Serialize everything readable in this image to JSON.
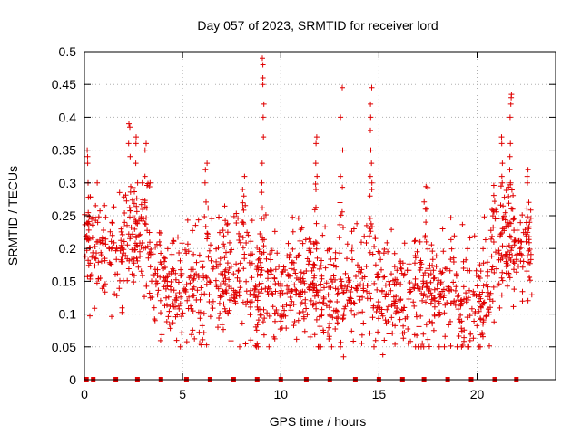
{
  "chart_data": {
    "type": "scatter",
    "title": "Day 057 of 2023, SRMTID for receiver lord",
    "xlabel": "GPS time / hours",
    "ylabel": "SRMTID / TECUs",
    "xlim": [
      0,
      24
    ],
    "ylim": [
      0,
      0.5
    ],
    "xticks": [
      0,
      5,
      10,
      15,
      20
    ],
    "yticks": [
      0,
      0.05,
      0.1,
      0.15,
      0.2,
      0.25,
      0.3,
      0.35,
      0.4,
      0.45,
      0.5
    ],
    "ytick_labels": [
      "0",
      "0.05",
      "0.1",
      "0.15",
      "0.2",
      "0.25",
      "0.3",
      "0.35",
      "0.4",
      "0.45",
      "0.5"
    ],
    "grid": true,
    "marker": "+",
    "series_color": "#e00000",
    "zero_markers_x": [
      0.1,
      0.45,
      1.6,
      2.7,
      3.9,
      5.2,
      6.4,
      7.6,
      8.8,
      10.0,
      11.3,
      12.5,
      13.8,
      15.0,
      16.2,
      17.3,
      18.5,
      19.7,
      20.9,
      22.0
    ],
    "spikes": [
      {
        "x": 0.2,
        "ys": [
          0.35,
          0.34,
          0.33,
          0.3
        ]
      },
      {
        "x": 2.3,
        "ys": [
          0.39,
          0.385,
          0.36,
          0.34
        ]
      },
      {
        "x": 2.6,
        "ys": [
          0.37,
          0.36,
          0.33
        ]
      },
      {
        "x": 3.1,
        "ys": [
          0.36,
          0.35,
          0.31
        ]
      },
      {
        "x": 6.2,
        "ys": [
          0.33,
          0.32,
          0.3
        ]
      },
      {
        "x": 8.1,
        "ys": [
          0.31,
          0.29,
          0.28
        ]
      },
      {
        "x": 9.1,
        "ys": [
          0.49,
          0.48,
          0.46,
          0.45,
          0.42,
          0.4,
          0.37,
          0.33,
          0.3
        ]
      },
      {
        "x": 11.8,
        "ys": [
          0.37,
          0.36,
          0.33,
          0.31,
          0.29
        ]
      },
      {
        "x": 13.1,
        "ys": [
          0.445,
          0.4,
          0.35,
          0.31
        ]
      },
      {
        "x": 14.6,
        "ys": [
          0.445,
          0.42,
          0.4,
          0.38,
          0.35,
          0.33,
          0.31,
          0.3,
          0.29,
          0.28
        ]
      },
      {
        "x": 17.4,
        "ys": [
          0.26
        ]
      },
      {
        "x": 21.3,
        "ys": [
          0.37,
          0.36,
          0.33,
          0.31,
          0.3
        ]
      },
      {
        "x": 21.7,
        "ys": [
          0.435,
          0.43,
          0.42,
          0.4,
          0.36,
          0.34,
          0.32
        ]
      },
      {
        "x": 22.6,
        "ys": [
          0.32,
          0.31,
          0.3
        ]
      }
    ],
    "low_points": [
      {
        "x": 4.7,
        "y": 0.06
      },
      {
        "x": 8.8,
        "y": 0.055
      },
      {
        "x": 9.4,
        "y": 0.05
      },
      {
        "x": 11.5,
        "y": 0.065
      },
      {
        "x": 13.2,
        "y": 0.035
      },
      {
        "x": 15.2,
        "y": 0.038
      },
      {
        "x": 20.1,
        "y": 0.05
      },
      {
        "x": 6.8,
        "y": 0.08
      },
      {
        "x": 3.6,
        "y": 0.09
      },
      {
        "x": 17.8,
        "y": 0.075
      }
    ],
    "baseline_segments": [
      {
        "x0": 0.0,
        "x1": 0.3,
        "center": 0.2
      },
      {
        "x0": 0.3,
        "x1": 1.5,
        "center": 0.2
      },
      {
        "x0": 1.5,
        "x1": 2.0,
        "center": 0.18
      },
      {
        "x0": 2.0,
        "x1": 3.4,
        "center": 0.22
      },
      {
        "x0": 3.4,
        "x1": 6.0,
        "center": 0.14
      },
      {
        "x0": 6.0,
        "x1": 8.5,
        "center": 0.16
      },
      {
        "x0": 8.5,
        "x1": 12.0,
        "center": 0.14
      },
      {
        "x0": 12.0,
        "x1": 15.0,
        "center": 0.13
      },
      {
        "x0": 15.0,
        "x1": 19.5,
        "center": 0.135
      },
      {
        "x0": 19.5,
        "x1": 20.7,
        "center": 0.12
      },
      {
        "x0": 20.7,
        "x1": 22.8,
        "center": 0.2
      }
    ],
    "point_count": 1400
  }
}
